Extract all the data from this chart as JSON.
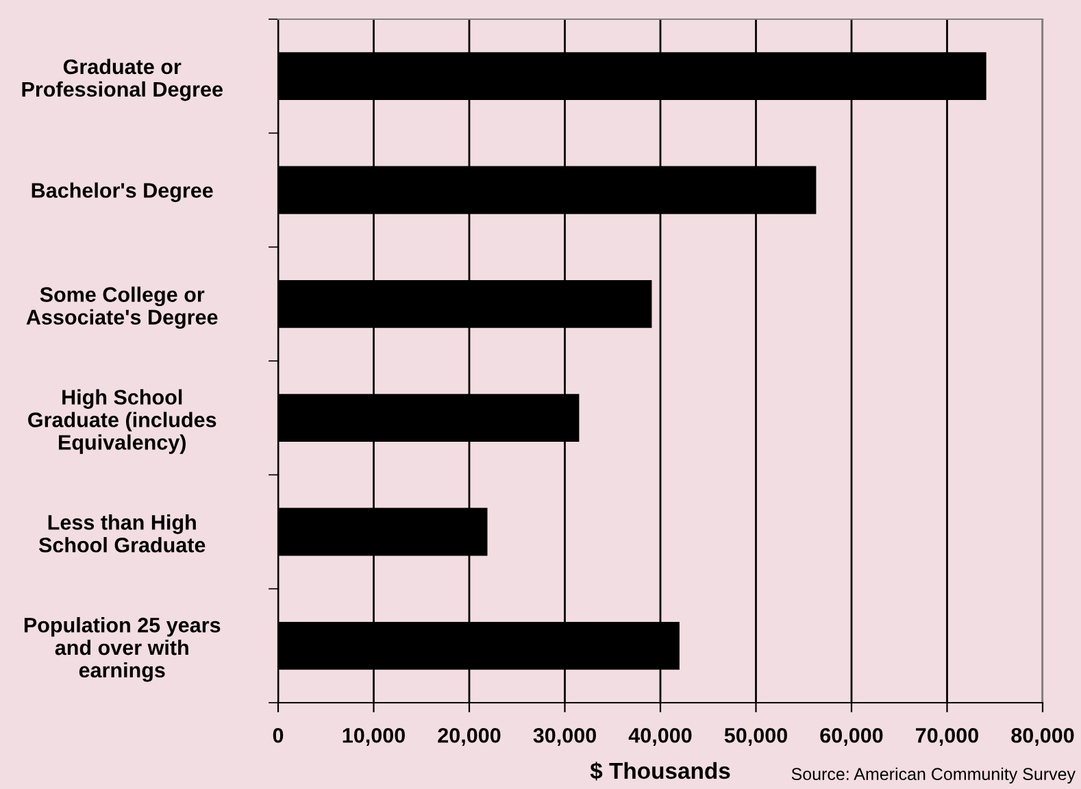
{
  "chart_data": {
    "type": "bar",
    "orientation": "horizontal",
    "xlabel": "$ Thousands",
    "categories": [
      "Graduate or\nProfessional Degree",
      "Bachelor's Degree",
      "Some College or\nAssociate's Degree",
      "High School\nGraduate (includes\nEquivalency)",
      "Less than High\nSchool Graduate",
      "Population 25 years\nand over with\nearnings"
    ],
    "values": [
      74100,
      56300,
      39100,
      31500,
      21900,
      42000
    ],
    "color": "#000000",
    "xlim": [
      0,
      80000
    ],
    "xticks": [
      0,
      {
        "value": 10000,
        "label": "10,000"
      },
      {
        "value": 20000,
        "label": "20,000"
      },
      {
        "value": 30000,
        "label": "30,000"
      },
      {
        "value": 40000,
        "label": "40,000"
      },
      {
        "value": 50000,
        "label": "50,000"
      },
      {
        "value": 60000,
        "label": "60,000"
      },
      {
        "value": 70000,
        "label": "70,000"
      },
      {
        "value": 80000,
        "label": "80,000"
      }
    ],
    "grid": "x",
    "legend": false,
    "annotations": [
      "Source: American Community Survey"
    ]
  }
}
